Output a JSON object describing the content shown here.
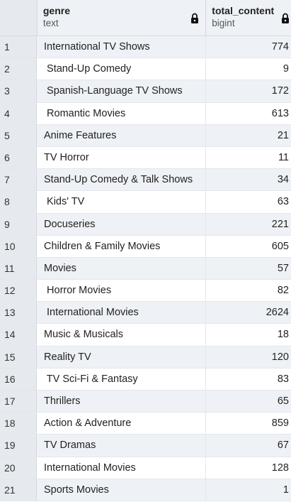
{
  "columns": {
    "genre": {
      "name": "genre",
      "type": "text"
    },
    "total_content": {
      "name": "total_content",
      "type": "bigint"
    }
  },
  "rows": [
    {
      "num": "1",
      "genre": "International TV Shows",
      "total_content": "774"
    },
    {
      "num": "2",
      "genre": " Stand-Up Comedy",
      "total_content": "9"
    },
    {
      "num": "3",
      "genre": " Spanish-Language TV Shows",
      "total_content": "172"
    },
    {
      "num": "4",
      "genre": " Romantic Movies",
      "total_content": "613"
    },
    {
      "num": "5",
      "genre": "Anime Features",
      "total_content": "21"
    },
    {
      "num": "6",
      "genre": "TV Horror",
      "total_content": "11"
    },
    {
      "num": "7",
      "genre": "Stand-Up Comedy & Talk Shows",
      "total_content": "34"
    },
    {
      "num": "8",
      "genre": " Kids' TV",
      "total_content": "63"
    },
    {
      "num": "9",
      "genre": "Docuseries",
      "total_content": "221"
    },
    {
      "num": "10",
      "genre": "Children & Family Movies",
      "total_content": "605"
    },
    {
      "num": "11",
      "genre": "Movies",
      "total_content": "57"
    },
    {
      "num": "12",
      "genre": " Horror Movies",
      "total_content": "82"
    },
    {
      "num": "13",
      "genre": " International Movies",
      "total_content": "2624"
    },
    {
      "num": "14",
      "genre": "Music & Musicals",
      "total_content": "18"
    },
    {
      "num": "15",
      "genre": "Reality TV",
      "total_content": "120"
    },
    {
      "num": "16",
      "genre": " TV Sci-Fi & Fantasy",
      "total_content": "83"
    },
    {
      "num": "17",
      "genre": "Thrillers",
      "total_content": "65"
    },
    {
      "num": "18",
      "genre": "Action & Adventure",
      "total_content": "859"
    },
    {
      "num": "19",
      "genre": "TV Dramas",
      "total_content": "67"
    },
    {
      "num": "20",
      "genre": "International Movies",
      "total_content": "128"
    },
    {
      "num": "21",
      "genre": "Sports Movies",
      "total_content": "1"
    }
  ],
  "icons": {
    "column_lock": "lock-icon"
  },
  "colors": {
    "header_bg": "#eef1f5",
    "row_number_bg": "#e6e9ee",
    "stripe_bg": "#eef1f5",
    "row_bg": "#ffffff",
    "text": "#222222"
  }
}
